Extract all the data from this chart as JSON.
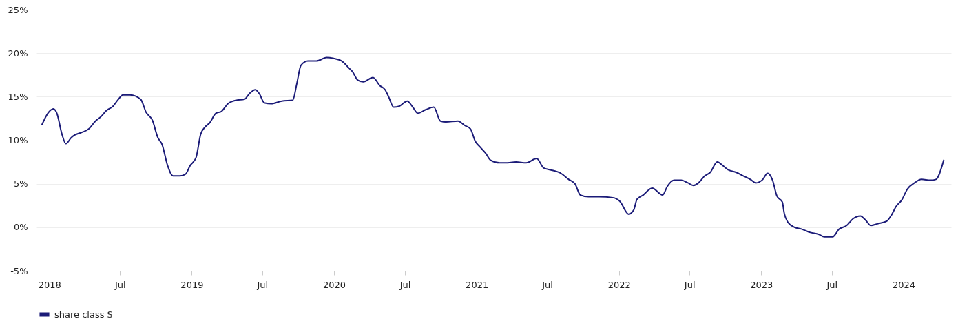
{
  "chart_data": {
    "type": "line",
    "x": [
      "2017-12-13",
      "2017-12-28",
      "2018-01-11",
      "2018-01-20",
      "2018-02-02",
      "2018-02-12",
      "2018-02-26",
      "2018-03-07",
      "2018-03-25",
      "2018-04-12",
      "2018-04-29",
      "2018-05-13",
      "2018-05-27",
      "2018-06-13",
      "2018-06-25",
      "2018-07-09",
      "2018-07-27",
      "2018-08-23",
      "2018-09-06",
      "2018-09-22",
      "2018-10-06",
      "2018-10-17",
      "2018-10-31",
      "2018-11-14",
      "2018-12-02",
      "2018-12-16",
      "2018-12-28",
      "2019-01-12",
      "2019-01-24",
      "2019-02-04",
      "2019-02-16",
      "2019-03-04",
      "2019-03-18",
      "2019-04-04",
      "2019-04-26",
      "2019-05-16",
      "2019-05-30",
      "2019-06-13",
      "2019-06-24",
      "2019-07-06",
      "2019-07-24",
      "2019-08-20",
      "2019-09-17",
      "2019-09-28",
      "2019-10-08",
      "2019-10-26",
      "2019-11-17",
      "2019-12-13",
      "2019-12-31",
      "2020-01-21",
      "2020-02-08",
      "2020-02-17",
      "2020-03-02",
      "2020-03-16",
      "2020-04-10",
      "2020-04-27",
      "2020-05-11",
      "2020-05-20",
      "2020-06-02",
      "2020-06-16",
      "2020-07-07",
      "2020-07-21",
      "2020-08-03",
      "2020-08-23",
      "2020-09-13",
      "2020-09-30",
      "2020-10-14",
      "2020-11-14",
      "2020-12-01",
      "2020-12-16",
      "2020-12-28",
      "2021-01-10",
      "2021-01-24",
      "2021-02-06",
      "2021-03-01",
      "2021-03-16",
      "2021-04-12",
      "2021-05-08",
      "2021-06-04",
      "2021-06-22",
      "2021-07-09",
      "2021-08-05",
      "2021-08-25",
      "2021-09-10",
      "2021-09-24",
      "2021-10-15",
      "2021-11-11",
      "2021-12-16",
      "2022-01-03",
      "2022-01-26",
      "2022-02-08",
      "2022-02-16",
      "2022-03-04",
      "2022-03-27",
      "2022-04-23",
      "2022-05-05",
      "2022-05-23",
      "2022-06-10",
      "2022-06-27",
      "2022-07-11",
      "2022-07-24",
      "2022-08-09",
      "2022-08-23",
      "2022-09-10",
      "2022-09-24",
      "2022-10-08",
      "2022-10-29",
      "2022-11-16",
      "2022-12-04",
      "2022-12-18",
      "2023-01-05",
      "2023-01-17",
      "2023-01-30",
      "2023-02-10",
      "2023-02-24",
      "2023-03-01",
      "2023-03-10",
      "2023-03-27",
      "2023-04-14",
      "2023-05-07",
      "2023-05-28",
      "2023-06-12",
      "2023-07-03",
      "2023-07-20",
      "2023-08-08",
      "2023-08-25",
      "2023-09-12",
      "2023-09-26",
      "2023-10-09",
      "2023-10-26",
      "2023-11-19",
      "2023-12-01",
      "2023-12-13",
      "2023-12-27",
      "2024-01-11",
      "2024-01-29",
      "2024-02-16",
      "2024-03-10",
      "2024-03-24",
      "2024-04-13"
    ],
    "series": [
      {
        "name": "share class S",
        "color": "#1b1b78",
        "values": [
          11.8,
          13.1,
          13.6,
          13.1,
          10.7,
          9.6,
          10.3,
          10.6,
          10.9,
          11.3,
          12.2,
          12.7,
          13.4,
          13.9,
          14.6,
          15.2,
          15.2,
          14.7,
          13.2,
          12.3,
          10.3,
          9.5,
          7.1,
          5.9,
          5.9,
          6.1,
          7.1,
          8.0,
          10.7,
          11.5,
          12.0,
          13.1,
          13.3,
          14.2,
          14.6,
          14.7,
          15.4,
          15.8,
          15.3,
          14.3,
          14.2,
          14.5,
          14.6,
          16.6,
          18.6,
          19.1,
          19.1,
          19.5,
          19.4,
          19.1,
          18.3,
          17.9,
          16.9,
          16.7,
          17.2,
          16.3,
          15.8,
          15.0,
          13.8,
          13.9,
          14.5,
          13.8,
          13.1,
          13.5,
          13.8,
          12.2,
          12.1,
          12.2,
          11.7,
          11.3,
          9.9,
          9.2,
          8.5,
          7.7,
          7.4,
          7.4,
          7.5,
          7.4,
          7.9,
          6.8,
          6.6,
          6.2,
          5.5,
          5.0,
          3.7,
          3.5,
          3.5,
          3.4,
          3.0,
          1.5,
          2.0,
          3.2,
          3.7,
          4.5,
          3.7,
          4.7,
          5.4,
          5.4,
          5.1,
          4.8,
          5.1,
          5.9,
          6.3,
          7.5,
          7.1,
          6.6,
          6.3,
          5.9,
          5.5,
          5.1,
          5.5,
          6.2,
          5.4,
          3.6,
          2.9,
          1.6,
          0.6,
          0,
          -0.2,
          -0.6,
          -0.8,
          -1.1,
          -1.1,
          -0.2,
          0.2,
          1.0,
          1.3,
          0.8,
          0.2,
          0.4,
          0.7,
          1.4,
          2.4,
          3.1,
          4.4,
          5.1,
          5.5,
          5.4,
          5.5,
          7.7
        ]
      }
    ],
    "xlim": [
      "2017-11-27",
      "2024-05-02"
    ],
    "xticks": [
      {
        "value": "2018-01-01",
        "label": "2018"
      },
      {
        "value": "2018-07-01",
        "label": "Jul"
      },
      {
        "value": "2019-01-01",
        "label": "2019"
      },
      {
        "value": "2019-07-01",
        "label": "Jul"
      },
      {
        "value": "2020-01-01",
        "label": "2020"
      },
      {
        "value": "2020-07-01",
        "label": "Jul"
      },
      {
        "value": "2021-01-01",
        "label": "2021"
      },
      {
        "value": "2021-07-01",
        "label": "Jul"
      },
      {
        "value": "2022-01-01",
        "label": "2022"
      },
      {
        "value": "2022-07-01",
        "label": "Jul"
      },
      {
        "value": "2023-01-01",
        "label": "2023"
      },
      {
        "value": "2023-07-01",
        "label": "Jul"
      },
      {
        "value": "2024-01-01",
        "label": "2024"
      }
    ],
    "ylim": [
      -5,
      25
    ],
    "yticks": [
      {
        "value": -5,
        "label": "-5%"
      },
      {
        "value": 0,
        "label": "0%"
      },
      {
        "value": 5,
        "label": "5%"
      },
      {
        "value": 10,
        "label": "10%"
      },
      {
        "value": 15,
        "label": "15%"
      },
      {
        "value": 20,
        "label": "20%"
      },
      {
        "value": 25,
        "label": "25%"
      }
    ],
    "grid": "y",
    "legend": "bottom",
    "line_style": "solid"
  }
}
